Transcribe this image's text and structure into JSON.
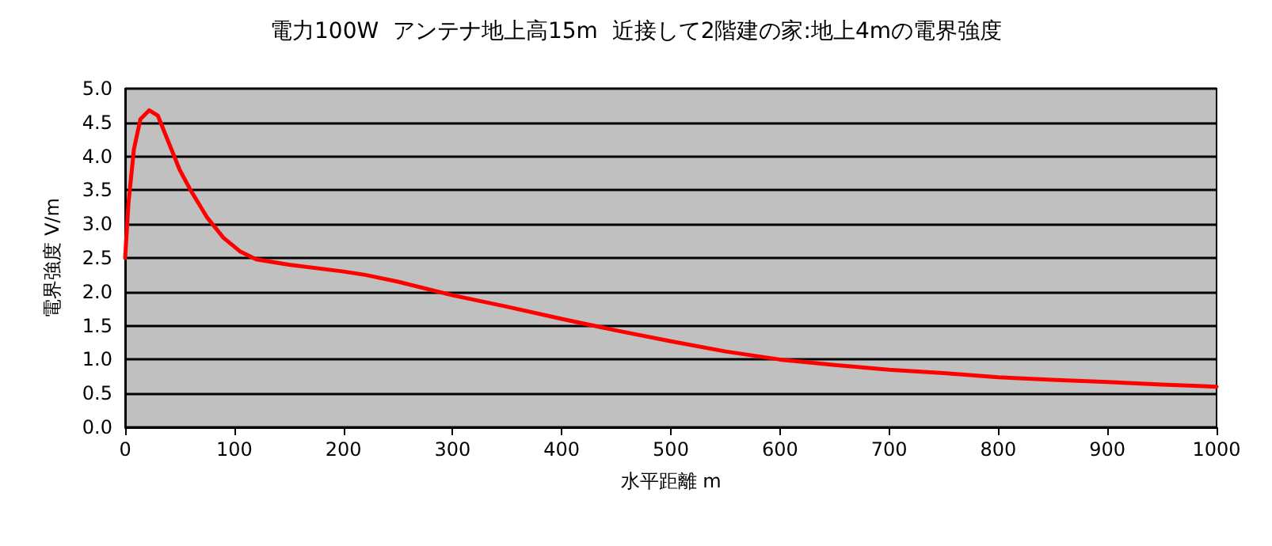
{
  "chart_data": {
    "type": "line",
    "title": "電力100W  アンテナ地上高15m  近接して2階建の家:地上4mの電界強度",
    "xlabel": "水平距離 m",
    "ylabel": "電界強度 V/m",
    "x": [
      0,
      3,
      8,
      14,
      22,
      30,
      40,
      50,
      60,
      75,
      90,
      105,
      120,
      150,
      200,
      220,
      250,
      300,
      350,
      400,
      450,
      500,
      550,
      600,
      650,
      700,
      750,
      800,
      850,
      900,
      950,
      1000
    ],
    "series": [
      {
        "color": "#ff0000",
        "values": [
          2.5,
          3.3,
          4.1,
          4.55,
          4.68,
          4.6,
          4.2,
          3.8,
          3.5,
          3.1,
          2.8,
          2.6,
          2.48,
          2.4,
          2.3,
          2.25,
          2.15,
          1.95,
          1.78,
          1.6,
          1.43,
          1.27,
          1.12,
          1.0,
          0.92,
          0.85,
          0.8,
          0.74,
          0.7,
          0.67,
          0.63,
          0.6
        ]
      }
    ],
    "xlim": [
      0,
      1000
    ],
    "xticks": [
      0,
      100,
      200,
      300,
      400,
      500,
      600,
      700,
      800,
      900,
      1000
    ],
    "ylim": [
      0,
      5
    ],
    "yticks": [
      {
        "value": 0,
        "label": "0.0"
      },
      {
        "value": 0.5,
        "label": "0.5"
      },
      {
        "value": 1,
        "label": "1.0"
      },
      {
        "value": 1.5,
        "label": "1.5"
      },
      {
        "value": 2,
        "label": "2.0"
      },
      {
        "value": 2.5,
        "label": "2.5"
      },
      {
        "value": 3,
        "label": "3.0"
      },
      {
        "value": 3.5,
        "label": "3.5"
      },
      {
        "value": 4,
        "label": "4.0"
      },
      {
        "value": 4.5,
        "label": "4.5"
      },
      {
        "value": 5,
        "label": "5.0"
      }
    ],
    "grid": "y",
    "marker": "none",
    "line_style": "solid"
  }
}
